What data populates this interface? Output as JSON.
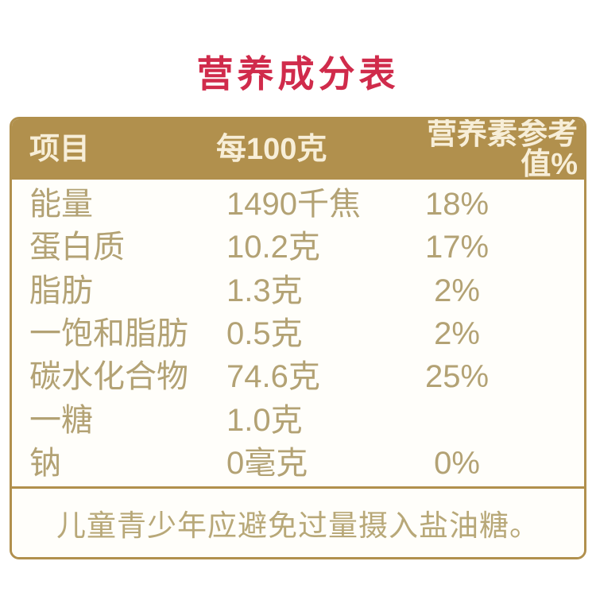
{
  "title": {
    "text": "营养成分表",
    "color": "#d02b4b"
  },
  "table": {
    "border_color": "#b1904d",
    "header_bg": "#b1904d",
    "header_text_color": "#f7eed8",
    "body_text_color": "#b3a274",
    "columns": [
      {
        "label": "项目"
      },
      {
        "label": "每100克"
      },
      {
        "label": "营养素参考值%"
      }
    ],
    "rows": [
      {
        "item": "能量",
        "per100g": "1490千焦",
        "nrv": "18%"
      },
      {
        "item": "蛋白质",
        "per100g": "10.2克",
        "nrv": "17%"
      },
      {
        "item": "脂肪",
        "per100g": "1.3克",
        "nrv": "2%"
      },
      {
        "item": "一饱和脂肪",
        "per100g": "0.5克",
        "nrv": "2%"
      },
      {
        "item": "碳水化合物",
        "per100g": "74.6克",
        "nrv": "25%"
      },
      {
        "item": "一糖",
        "per100g": "1.0克",
        "nrv": ""
      },
      {
        "item": "钠",
        "per100g": "0毫克",
        "nrv": "0%"
      }
    ],
    "footer_note": "儿童青少年应避免过量摄入盐油糖。"
  }
}
